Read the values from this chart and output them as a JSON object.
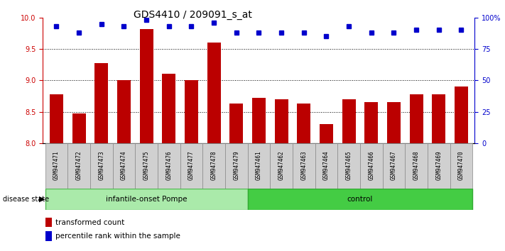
{
  "title": "GDS4410 / 209091_s_at",
  "samples": [
    "GSM947471",
    "GSM947472",
    "GSM947473",
    "GSM947474",
    "GSM947475",
    "GSM947476",
    "GSM947477",
    "GSM947478",
    "GSM947479",
    "GSM947461",
    "GSM947462",
    "GSM947463",
    "GSM947464",
    "GSM947465",
    "GSM947466",
    "GSM947467",
    "GSM947468",
    "GSM947469",
    "GSM947470"
  ],
  "bar_values": [
    8.78,
    8.47,
    9.28,
    9.0,
    9.82,
    9.1,
    9.0,
    9.6,
    8.63,
    8.72,
    8.7,
    8.63,
    8.3,
    8.7,
    8.65,
    8.65,
    8.78,
    8.78,
    8.9
  ],
  "percentile_values": [
    93,
    88,
    95,
    93,
    98,
    93,
    93,
    96,
    88,
    88,
    88,
    88,
    85,
    93,
    88,
    88,
    90,
    90,
    90
  ],
  "group1_label": "infantile-onset Pompe",
  "group2_label": "control",
  "group1_count": 9,
  "group2_count": 10,
  "bar_color": "#bb0000",
  "dot_color": "#0000cc",
  "group1_bg": "#aaeaaa",
  "group2_bg": "#44cc44",
  "ylim_left": [
    8.0,
    10.0
  ],
  "ylim_right": [
    0,
    100
  ],
  "yticks_left": [
    8.0,
    8.5,
    9.0,
    9.5,
    10.0
  ],
  "yticks_right": [
    0,
    25,
    50,
    75,
    100
  ],
  "ytick_labels_right": [
    "0",
    "25",
    "50",
    "75",
    "100%"
  ],
  "hlines": [
    8.5,
    9.0,
    9.5
  ],
  "disease_state_label": "disease state",
  "legend_bar_label": "transformed count",
  "legend_dot_label": "percentile rank within the sample",
  "sample_box_color": "#d0d0d0",
  "title_fontsize": 10,
  "tick_fontsize": 7,
  "axis_label_color_left": "#cc0000",
  "axis_label_color_right": "#0000cc",
  "bar_width": 0.6
}
